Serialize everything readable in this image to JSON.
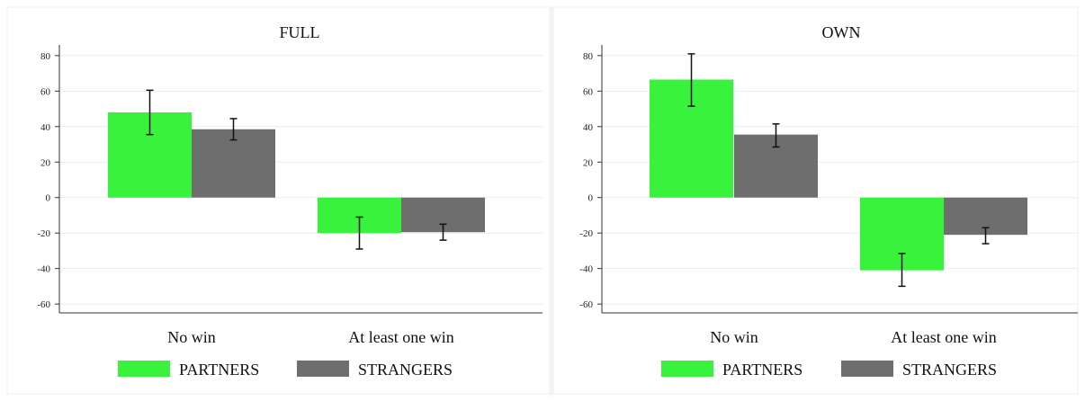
{
  "chart_data": [
    {
      "type": "bar",
      "title": "FULL",
      "categories": [
        "No win",
        "At least one win"
      ],
      "series": [
        {
          "name": "PARTNERS",
          "values": [
            48,
            -20
          ],
          "error_low": [
            35.5,
            -29
          ],
          "error_high": [
            60.5,
            -11
          ]
        },
        {
          "name": "STRANGERS",
          "values": [
            38.5,
            -19.5
          ],
          "error_low": [
            32.5,
            -24
          ],
          "error_high": [
            44.5,
            -15
          ]
        }
      ],
      "ylim": [
        -65,
        85
      ],
      "yticks": [
        -60,
        -40,
        -20,
        0,
        20,
        40,
        60,
        80
      ],
      "grid": true,
      "legend": "bottom"
    },
    {
      "type": "bar",
      "title": "OWN",
      "categories": [
        "No win",
        "At least one win"
      ],
      "series": [
        {
          "name": "PARTNERS",
          "values": [
            66.5,
            -41
          ],
          "error_low": [
            51.5,
            -50
          ],
          "error_high": [
            81,
            -31.5
          ]
        },
        {
          "name": "STRANGERS",
          "values": [
            35.5,
            -21
          ],
          "error_low": [
            28.5,
            -26
          ],
          "error_high": [
            41.5,
            -17
          ]
        }
      ],
      "ylim": [
        -65,
        85
      ],
      "yticks": [
        -60,
        -40,
        -20,
        0,
        20,
        40,
        60,
        80
      ],
      "grid": true,
      "legend": "bottom"
    }
  ],
  "colors": {
    "PARTNERS": "#39f23c",
    "STRANGERS": "#6e6e6e"
  }
}
